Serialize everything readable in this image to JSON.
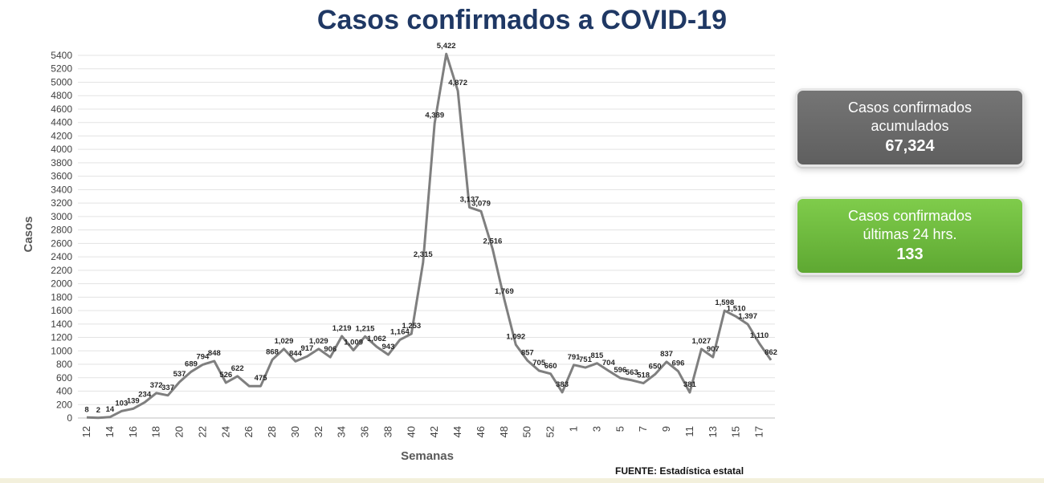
{
  "title": "Casos confirmados a COVID-19",
  "cards": {
    "accumulated": {
      "line1": "Casos confirmados",
      "line2": "acumulados",
      "value": "67,324",
      "color": "#6b6b6b"
    },
    "last24": {
      "line1": "Casos confirmados",
      "line2": "últimas  24 hrs.",
      "value": "133",
      "color": "#6cbb3c"
    }
  },
  "source": "FUENTE:  Estadística estatal",
  "chart_data": {
    "type": "line",
    "title": "Casos confirmados a COVID-19",
    "xlabel": "Semanas",
    "ylabel": "Casos",
    "ylim": [
      0,
      5400
    ],
    "ytick_step": 200,
    "grid": true,
    "line_color": "#7f7f7f",
    "x": [
      "12",
      "13",
      "14",
      "15",
      "16",
      "17",
      "18",
      "19",
      "20",
      "21",
      "22",
      "23",
      "24",
      "25",
      "26",
      "27",
      "28",
      "29",
      "30",
      "31",
      "32",
      "33",
      "34",
      "35",
      "36",
      "37",
      "38",
      "39",
      "40",
      "41",
      "42",
      "43",
      "44",
      "45",
      "46",
      "47",
      "48",
      "49",
      "50",
      "51",
      "52",
      "53",
      "1",
      "2",
      "3",
      "4",
      "5",
      "6",
      "7",
      "8",
      "9",
      "10",
      "11",
      "12",
      "13",
      "14",
      "15",
      "16",
      "17",
      "18"
    ],
    "xtick_labels": [
      "12",
      "14",
      "16",
      "18",
      "20",
      "22",
      "24",
      "26",
      "28",
      "30",
      "32",
      "34",
      "36",
      "38",
      "40",
      "42",
      "44",
      "46",
      "48",
      "50",
      "52",
      "1",
      "3",
      "5",
      "7",
      "9",
      "11",
      "13",
      "15",
      "17"
    ],
    "xtick_positions": [
      0,
      2,
      4,
      6,
      8,
      10,
      12,
      14,
      16,
      18,
      20,
      22,
      24,
      26,
      28,
      30,
      32,
      34,
      36,
      38,
      40,
      42,
      44,
      46,
      48,
      50,
      52,
      54,
      56,
      58
    ],
    "values": [
      8,
      2,
      14,
      103,
      139,
      234,
      372,
      337,
      537,
      689,
      794,
      848,
      526,
      622,
      475,
      475,
      868,
      1029,
      844,
      917,
      1029,
      906,
      1219,
      1009,
      1215,
      1062,
      943,
      1164,
      1253,
      2315,
      4389,
      5422,
      4872,
      3137,
      3079,
      2516,
      1769,
      1092,
      857,
      705,
      660,
      383,
      791,
      751,
      815,
      704,
      596,
      563,
      518,
      650,
      837,
      696,
      381,
      1027,
      907,
      1598,
      1510,
      1397,
      1110,
      862
    ],
    "data_labels": [
      "8",
      "2",
      "14",
      "103",
      "139",
      "234",
      "372",
      "337",
      "537",
      "689",
      "794",
      "848",
      "526",
      "622",
      "",
      "475",
      "868",
      "1,029",
      "844",
      "917",
      "1,029",
      "906",
      "1,219",
      "1,009",
      "1,215",
      "1,062",
      "943",
      "1,164",
      "1,253",
      "2,315",
      "4,389",
      "5,422",
      "4,872",
      "3,137",
      "3,079",
      "2,516",
      "1,769",
      "1,092",
      "857",
      "705",
      "660",
      "383",
      "791",
      "751",
      "815",
      "704",
      "596",
      "563",
      "518",
      "650",
      "837",
      "696",
      "381",
      "1,027",
      "907",
      "1,598",
      "1,510",
      "1,397",
      "1,110",
      "862"
    ]
  }
}
